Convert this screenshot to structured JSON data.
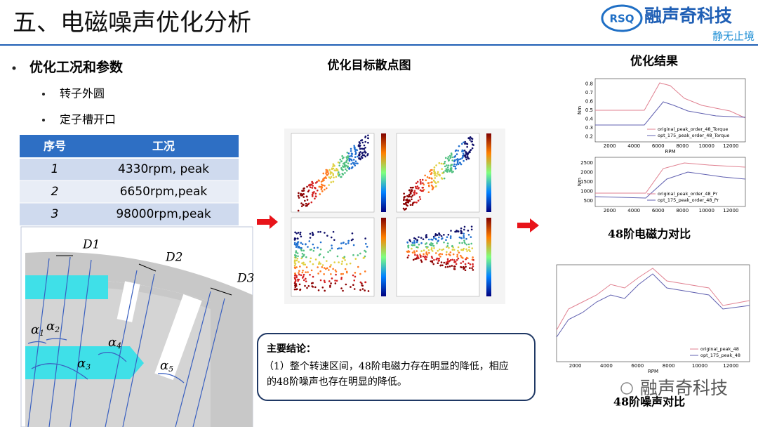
{
  "header": {
    "title": "五、电磁噪声优化分析",
    "logo_mark": "RSQ",
    "logo_name": "融声奇科技",
    "slogan": "静无止境"
  },
  "left": {
    "bullet": "优化工况和参数",
    "sub_bullets": [
      "转子外圆",
      "定子槽开口"
    ],
    "table": {
      "columns": [
        "序号",
        "工况"
      ],
      "rows": [
        [
          "1",
          "4330rpm, peak"
        ],
        [
          "2",
          "6650rpm,peak"
        ],
        [
          "3",
          "98000rpm,peak"
        ]
      ]
    },
    "diagram": {
      "dims": [
        "D1",
        "D2",
        "D3"
      ],
      "angles": [
        {
          "symbol": "α",
          "sub": "1"
        },
        {
          "symbol": "α",
          "sub": "2"
        },
        {
          "symbol": "α",
          "sub": "3"
        },
        {
          "symbol": "α",
          "sub": "4"
        },
        {
          "symbol": "α",
          "sub": "5"
        }
      ]
    }
  },
  "middle": {
    "title": "优化目标散点图",
    "conclusion": {
      "heading": "主要结论：",
      "text": "（1）整个转速区间，48阶电磁力存在明显的降低，相应的48阶噪声也存在明显的降低。"
    }
  },
  "right": {
    "title": "优化结果",
    "force_caption": "48阶电磁力对比",
    "noise_caption": "48阶噪声对比",
    "watermark": "融声奇科技",
    "charts": [
      {
        "legend": [
          "original_peak_order_48_Torque",
          "opt_175_peak_order_48_Torque"
        ],
        "xticks": [
          2000,
          4000,
          6000,
          8000,
          10000,
          12000
        ],
        "yticks": [
          0.2,
          0.3,
          0.4,
          0.5,
          0.6,
          0.7,
          0.8
        ],
        "xlabel": "RPM",
        "ylabel": "Nm"
      },
      {
        "legend": [
          "original_peak_order_48_Pr",
          "opt_175_peak_order_48_Pr"
        ],
        "xticks": [
          2000,
          4000,
          6000,
          8000,
          10000,
          12000
        ],
        "yticks": [
          500,
          1000,
          1500,
          2000,
          2500
        ],
        "ylabel": "Nm"
      },
      {
        "legend": [
          "original_peak_48",
          "opt_175_peak_48"
        ],
        "xticks": [
          2000,
          4000,
          6000,
          8000,
          10000,
          12000
        ],
        "xlabel": "RPM"
      }
    ]
  }
}
